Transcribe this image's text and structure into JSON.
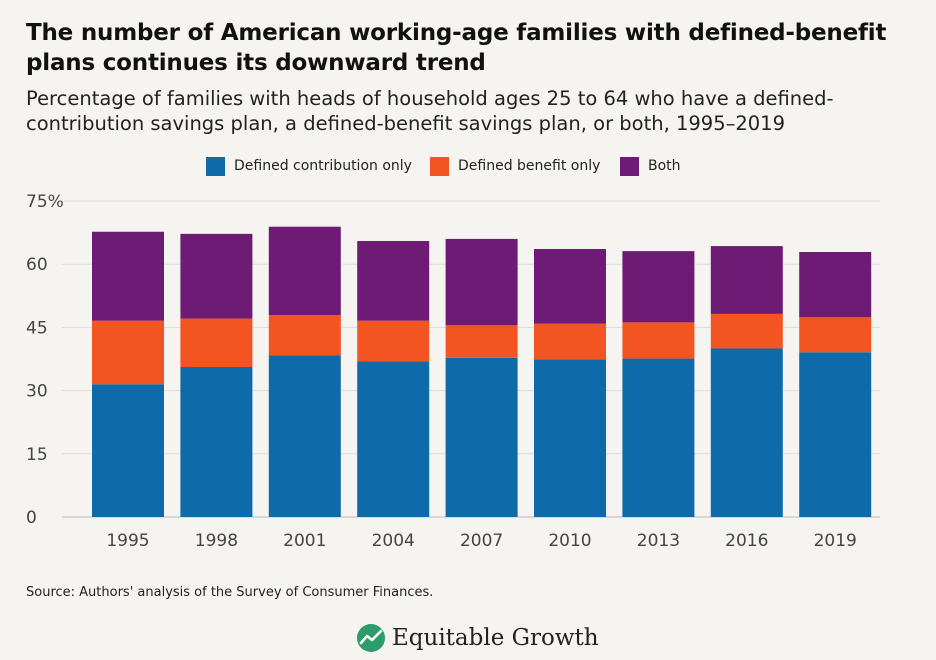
{
  "title": "The number of American working-age families with defined-benefit plans continues its downward trend",
  "subtitle": "Percentage of families with heads of household ages 25 to 64 who have a defined-contribution savings plan, a defined-benefit savings plan, or both, 1995–2019",
  "source": "Source: Authors' analysis of the Survey of Consumer Finances.",
  "brand": "Equitable Growth",
  "chart_data": {
    "type": "bar",
    "stacked": true,
    "categories": [
      "1995",
      "1998",
      "2001",
      "2004",
      "2007",
      "2010",
      "2013",
      "2016",
      "2019"
    ],
    "series": [
      {
        "name": "Defined contribution only",
        "color": "#0e6aa8",
        "values": [
          31.5,
          35.6,
          38.4,
          36.9,
          37.8,
          37.4,
          37.6,
          40.0,
          39.1
        ]
      },
      {
        "name": "Defined benefit only",
        "color": "#f25522",
        "values": [
          15.1,
          11.5,
          9.5,
          9.7,
          7.7,
          8.5,
          8.6,
          8.2,
          8.3
        ]
      },
      {
        "name": "Both",
        "color": "#6d1b74",
        "values": [
          21.1,
          20.1,
          21.0,
          18.9,
          20.5,
          17.7,
          16.9,
          16.1,
          15.5
        ]
      }
    ],
    "yticks": [
      "0",
      "15",
      "30",
      "45",
      "60",
      "75%"
    ],
    "ylim": [
      0,
      75
    ],
    "grid": true,
    "legend_position": "top-center"
  }
}
